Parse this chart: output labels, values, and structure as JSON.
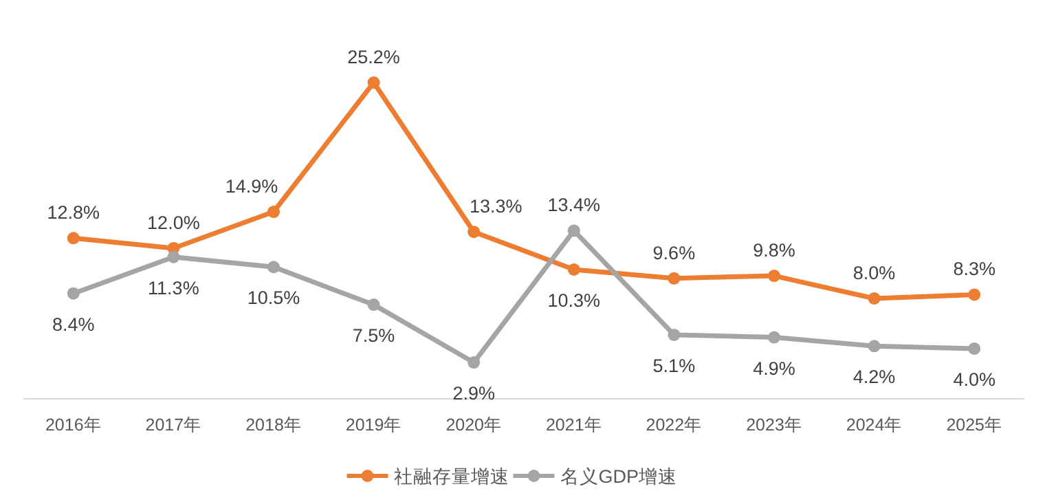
{
  "chart_data": {
    "type": "line",
    "categories": [
      "2016年",
      "2017年",
      "2018年",
      "2019年",
      "2020年",
      "2021年",
      "2022年",
      "2023年",
      "2024年",
      "2025年"
    ],
    "series": [
      {
        "name": "社融存量增速",
        "color": "#ed7d31",
        "values": [
          12.8,
          12.0,
          14.9,
          25.2,
          13.3,
          10.3,
          9.6,
          9.8,
          8.0,
          8.3
        ],
        "value_labels": [
          "12.8%",
          "12.0%",
          "14.9%",
          "25.2%",
          "13.3%",
          "10.3%",
          "9.6%",
          "9.8%",
          "8.0%",
          "8.3%"
        ]
      },
      {
        "name": "名义GDP增速",
        "color": "#a5a5a5",
        "values": [
          8.4,
          11.3,
          10.5,
          7.5,
          2.9,
          13.4,
          5.1,
          4.9,
          4.2,
          4.0
        ],
        "value_labels": [
          "8.4%",
          "11.3%",
          "10.5%",
          "7.5%",
          "2.9%",
          "13.4%",
          "5.1%",
          "4.9%",
          "4.2%",
          "4.0%"
        ]
      }
    ],
    "marker": "circle",
    "line_style": "solid",
    "legend": "bottom"
  }
}
